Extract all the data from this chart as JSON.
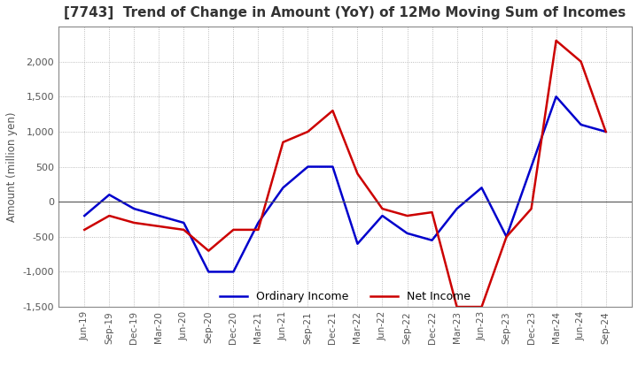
{
  "title": "[7743]  Trend of Change in Amount (YoY) of 12Mo Moving Sum of Incomes",
  "ylabel": "Amount (million yen)",
  "x_labels": [
    "Jun-19",
    "Sep-19",
    "Dec-19",
    "Mar-20",
    "Jun-20",
    "Sep-20",
    "Dec-20",
    "Mar-21",
    "Jun-21",
    "Sep-21",
    "Dec-21",
    "Mar-22",
    "Jun-22",
    "Sep-22",
    "Dec-22",
    "Mar-23",
    "Jun-23",
    "Sep-23",
    "Dec-23",
    "Mar-24",
    "Jun-24",
    "Sep-24"
  ],
  "ordinary_income": [
    -200,
    100,
    -100,
    -200,
    -300,
    -1000,
    -1000,
    -300,
    200,
    500,
    500,
    -600,
    -200,
    -450,
    -550,
    -100,
    200,
    -500,
    500,
    1500,
    1100,
    1000
  ],
  "net_income": [
    -400,
    -200,
    -300,
    -350,
    -400,
    -700,
    -400,
    -400,
    850,
    1000,
    1300,
    400,
    -100,
    -200,
    -150,
    -1500,
    -1500,
    -500,
    -100,
    2300,
    2000,
    1000
  ],
  "ordinary_color": "#0000cc",
  "net_color": "#cc0000",
  "ylim": [
    -1500,
    2500
  ],
  "yticks": [
    -1500,
    -1000,
    -500,
    0,
    500,
    1000,
    1500,
    2000
  ],
  "grid_color": "#aaaaaa",
  "background_color": "#ffffff",
  "title_color": "#333333",
  "legend_labels": [
    "Ordinary Income",
    "Net Income"
  ]
}
